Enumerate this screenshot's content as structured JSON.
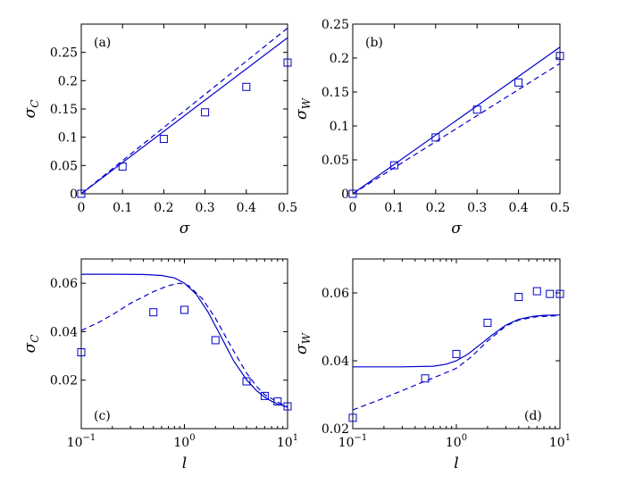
{
  "colors": {
    "series": "#0000cc",
    "axis": "#000000",
    "background": "#ffffff"
  },
  "chart_data": [
    {
      "panel": "(a)",
      "type": "line",
      "xlabel": "σ",
      "ylabel": "σ",
      "ylabel_sub": "C",
      "xlim": [
        0,
        0.5
      ],
      "ylim": [
        0,
        0.3
      ],
      "xscale": "linear",
      "legend": "none",
      "xticks": [
        0,
        0.1,
        0.2,
        0.3,
        0.4,
        0.5
      ],
      "xtick_labels": [
        "0",
        "0.1",
        "0.2",
        "0.3",
        "0.4",
        "0.5"
      ],
      "yticks": [
        0,
        0.05,
        0.1,
        0.15,
        0.2,
        0.25
      ],
      "ytick_labels": [
        "0",
        "0.05",
        "0.1",
        "0.15",
        "0.2",
        "0.25"
      ],
      "series": [
        {
          "style": "solid",
          "x": [
            0,
            0.5
          ],
          "y": [
            0,
            0.276
          ]
        },
        {
          "style": "dashed",
          "x": [
            0,
            0.5
          ],
          "y": [
            0,
            0.293
          ]
        },
        {
          "style": "markers",
          "marker": "square",
          "x": [
            0,
            0.1,
            0.2,
            0.3,
            0.4,
            0.5
          ],
          "y": [
            0,
            0.048,
            0.097,
            0.144,
            0.189,
            0.232
          ]
        }
      ]
    },
    {
      "panel": "(b)",
      "type": "line",
      "xlabel": "σ",
      "ylabel": "σ",
      "ylabel_sub": "W",
      "xlim": [
        0,
        0.5
      ],
      "ylim": [
        0,
        0.25
      ],
      "xscale": "linear",
      "legend": "none",
      "xticks": [
        0,
        0.1,
        0.2,
        0.3,
        0.4,
        0.5
      ],
      "xtick_labels": [
        "0",
        "0.1",
        "0.2",
        "0.3",
        "0.4",
        "0.5"
      ],
      "yticks": [
        0,
        0.05,
        0.1,
        0.15,
        0.2,
        0.25
      ],
      "ytick_labels": [
        "0",
        "0.05",
        "0.1",
        "0.15",
        "0.2",
        "0.25"
      ],
      "series": [
        {
          "style": "solid",
          "x": [
            0,
            0.5
          ],
          "y": [
            0,
            0.216
          ]
        },
        {
          "style": "dashed",
          "x": [
            0,
            0.5
          ],
          "y": [
            0,
            0.192
          ]
        },
        {
          "style": "markers",
          "marker": "square",
          "x": [
            0,
            0.1,
            0.2,
            0.3,
            0.4,
            0.5
          ],
          "y": [
            0,
            0.042,
            0.083,
            0.124,
            0.164,
            0.203
          ]
        }
      ]
    },
    {
      "panel": "(c)",
      "type": "line",
      "xlabel": "l",
      "ylabel": "σ",
      "ylabel_sub": "C",
      "xlim": [
        0.1,
        10
      ],
      "ylim": [
        0,
        0.07
      ],
      "xscale": "log",
      "legend": "none",
      "xticks": [
        0.1,
        1,
        10
      ],
      "xtick_labels": [
        "10",
        "10",
        "10"
      ],
      "xtick_exponents": [
        "−1",
        "0",
        "1"
      ],
      "yticks": [
        0.02,
        0.04,
        0.06
      ],
      "ytick_labels": [
        "0.02",
        "0.04",
        "0.06"
      ],
      "series": [
        {
          "style": "solid",
          "x": [
            0.1,
            0.2,
            0.4,
            0.6,
            0.8,
            1.0,
            1.3,
            1.7,
            2.2,
            3.0,
            4.0,
            5.0,
            6.0,
            7.0,
            8.0,
            10.0
          ],
          "y": [
            0.0637,
            0.0637,
            0.0636,
            0.0632,
            0.0622,
            0.06,
            0.0555,
            0.048,
            0.039,
            0.028,
            0.0202,
            0.0157,
            0.013,
            0.0113,
            0.0102,
            0.0088
          ]
        },
        {
          "style": "dashed",
          "x": [
            0.1,
            0.15,
            0.2,
            0.3,
            0.5,
            0.7,
            0.9,
            1.1,
            1.5,
            2.0,
            3.0,
            4.0,
            5.0,
            6.0,
            8.0,
            10.0
          ],
          "y": [
            0.0405,
            0.044,
            0.047,
            0.0517,
            0.0565,
            0.059,
            0.06,
            0.059,
            0.0535,
            0.0455,
            0.032,
            0.023,
            0.0175,
            0.014,
            0.011,
            0.009
          ]
        },
        {
          "style": "markers",
          "marker": "square",
          "x": [
            0.1,
            0.5,
            1,
            2,
            4,
            6,
            8,
            10
          ],
          "y": [
            0.0315,
            0.048,
            0.049,
            0.0365,
            0.0195,
            0.0135,
            0.0112,
            0.0092
          ]
        }
      ]
    },
    {
      "panel": "(d)",
      "type": "line",
      "xlabel": "l",
      "ylabel": "σ",
      "ylabel_sub": "W",
      "xlim": [
        0.1,
        10
      ],
      "ylim": [
        0.02,
        0.07
      ],
      "xscale": "log",
      "legend": "none",
      "xticks": [
        0.1,
        1,
        10
      ],
      "xtick_labels": [
        "10",
        "10",
        "10"
      ],
      "xtick_exponents": [
        "−1",
        "0",
        "1"
      ],
      "yticks": [
        0.02,
        0.04,
        0.06
      ],
      "ytick_labels": [
        "0.02",
        "0.04",
        "0.06"
      ],
      "series": [
        {
          "style": "solid",
          "x": [
            0.1,
            0.3,
            0.6,
            0.8,
            1.0,
            1.3,
            1.7,
            2.2,
            3.0,
            4.0,
            5.5,
            7.0,
            10.0
          ],
          "y": [
            0.0382,
            0.0382,
            0.0384,
            0.039,
            0.04,
            0.042,
            0.0448,
            0.0475,
            0.0505,
            0.0522,
            0.0531,
            0.0534,
            0.0535
          ]
        },
        {
          "style": "dashed",
          "x": [
            0.1,
            0.2,
            0.3,
            0.5,
            0.7,
            1.0,
            1.4,
            2.0,
            3.0,
            4.0,
            6.0,
            10.0
          ],
          "y": [
            0.0255,
            0.029,
            0.0312,
            0.034,
            0.0358,
            0.0378,
            0.0412,
            0.0458,
            0.0502,
            0.052,
            0.053,
            0.0533
          ]
        },
        {
          "style": "markers",
          "marker": "square",
          "x": [
            0.1,
            0.5,
            1,
            2,
            4,
            6,
            8,
            10
          ],
          "y": [
            0.0232,
            0.0348,
            0.042,
            0.0512,
            0.0588,
            0.0605,
            0.0597,
            0.0597
          ]
        }
      ]
    }
  ]
}
